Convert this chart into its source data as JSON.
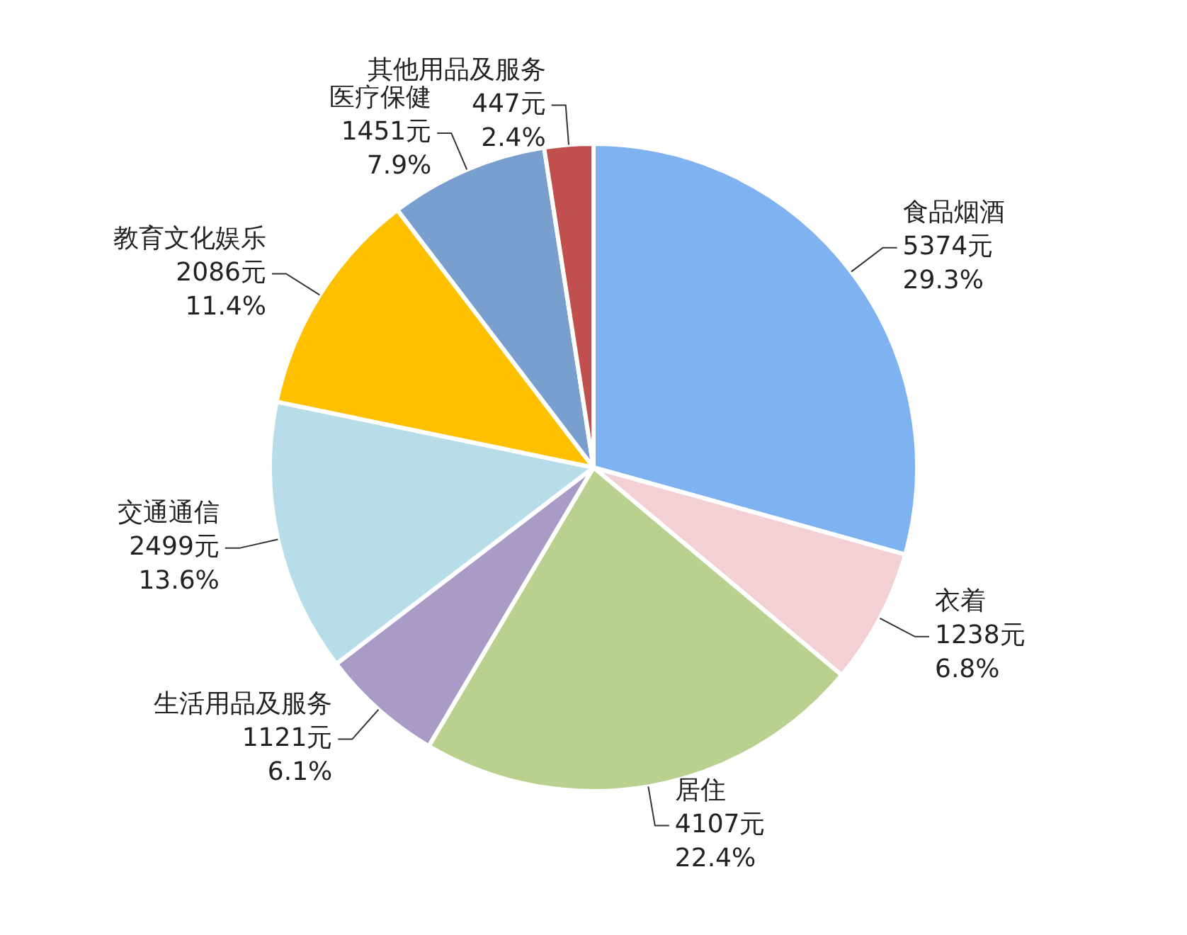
{
  "chart_data": {
    "type": "pie",
    "categories": [
      "食品烟酒",
      "衣着",
      "居住",
      "生活用品及服务",
      "交通通信",
      "教育文化娱乐",
      "医疗保健",
      "其他用品及服务"
    ],
    "values": [
      5374,
      1238,
      4107,
      1121,
      2499,
      2086,
      1451,
      447
    ],
    "colors": [
      "#7fb2f0",
      "#f2d0d4",
      "#b9d08e",
      "#a99bc6",
      "#b7dde9",
      "#ffc000",
      "#789fcd",
      "#c0504d"
    ],
    "value_labels": [
      "5374元\n29.3%",
      "1238元\n6.8%",
      "4107元\n22.4%",
      "1121元\n6.1%",
      "2499元\n13.6%",
      "2086元\n11.4%",
      "1451元\n7.9%",
      "447元\n2.4%"
    ],
    "legend": false
  }
}
